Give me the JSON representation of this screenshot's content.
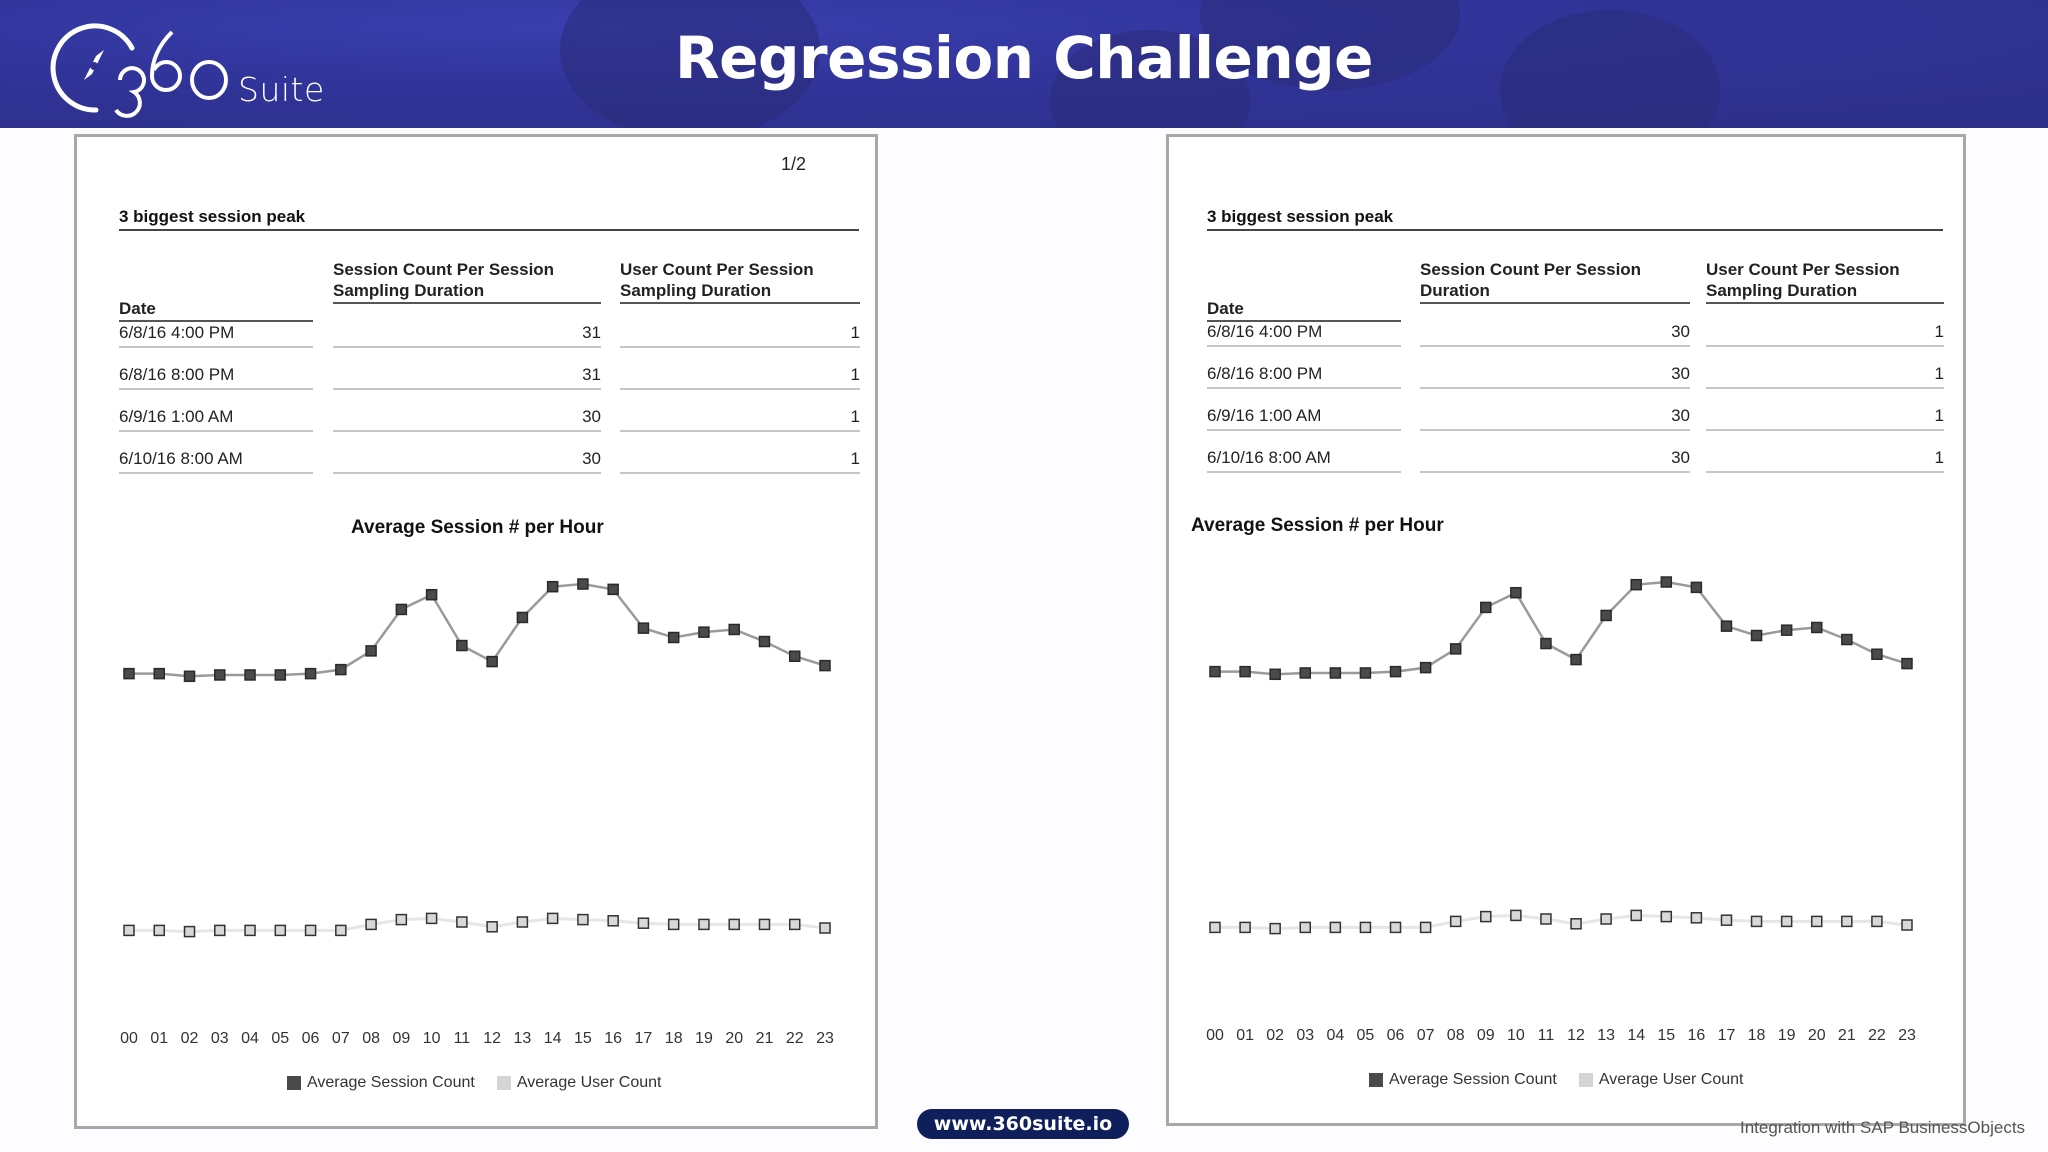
{
  "header": {
    "logo_number": "360",
    "logo_suffix": "Suite",
    "title": "Regression Challenge",
    "background_color": "#3236a0"
  },
  "pages": [
    {
      "page_number": "1/2",
      "section_title": "3 biggest session peak",
      "table": {
        "columns": [
          "Date",
          "Session Count Per Session\nSampling Duration",
          "User Count Per Session\nSampling Duration"
        ],
        "column_lines": [
          [
            "Date"
          ],
          [
            "Session Count Per Session",
            "Sampling Duration"
          ],
          [
            "User Count Per Session",
            "Sampling Duration"
          ]
        ],
        "rows": [
          {
            "date": "6/8/16 4:00 PM",
            "session": "31",
            "user": "1"
          },
          {
            "date": "6/8/16 8:00 PM",
            "session": "31",
            "user": "1"
          },
          {
            "date": "6/9/16 1:00 AM",
            "session": "30",
            "user": "1"
          },
          {
            "date": "6/10/16 8:00 AM",
            "session": "30",
            "user": "1"
          }
        ]
      },
      "chart_title": "Average Session # per Hour",
      "legend": [
        "Average Session Count",
        "Average User Count"
      ]
    },
    {
      "page_number": "",
      "section_title": "3 biggest session peak",
      "table": {
        "columns": [
          "Date",
          "Session Count Per Session\nDuration",
          "User Count Per Session\nSampling Duration"
        ],
        "column_lines": [
          [
            "Date"
          ],
          [
            "Session Count Per Session",
            "Duration"
          ],
          [
            "User Count Per Session",
            "Sampling Duration"
          ]
        ],
        "rows": [
          {
            "date": "6/8/16 4:00 PM",
            "session": "30",
            "user": "1"
          },
          {
            "date": "6/8/16 8:00 PM",
            "session": "30",
            "user": "1"
          },
          {
            "date": "6/9/16 1:00 AM",
            "session": "30",
            "user": "1"
          },
          {
            "date": "6/10/16 8:00 AM",
            "session": "30",
            "user": "1"
          }
        ]
      },
      "chart_title": "Average Session # per Hour",
      "legend": [
        "Average Session Count",
        "Average User Count"
      ]
    }
  ],
  "chart_data": [
    {
      "type": "line",
      "title": "Average Session # per Hour",
      "xlabel": "",
      "ylabel": "",
      "categories": [
        "00",
        "01",
        "02",
        "03",
        "04",
        "05",
        "06",
        "07",
        "08",
        "09",
        "10",
        "11",
        "12",
        "13",
        "14",
        "15",
        "16",
        "17",
        "18",
        "19",
        "20",
        "21",
        "22",
        "23"
      ],
      "series": [
        {
          "name": "Average Session Count",
          "color": "#4a4a4a",
          "values": [
            12.0,
            12.0,
            11.8,
            11.9,
            11.9,
            11.9,
            12.0,
            12.3,
            13.7,
            16.8,
            17.9,
            14.1,
            12.9,
            16.2,
            18.5,
            18.7,
            18.3,
            15.4,
            14.7,
            15.1,
            15.3,
            14.4,
            13.3,
            12.6
          ]
        },
        {
          "name": "Average User Count",
          "color": "#cfcfcf",
          "values": [
            0.8,
            0.8,
            0.7,
            0.8,
            0.8,
            0.8,
            0.8,
            0.8,
            1.3,
            1.7,
            1.8,
            1.5,
            1.1,
            1.5,
            1.8,
            1.7,
            1.6,
            1.4,
            1.3,
            1.3,
            1.3,
            1.3,
            1.3,
            1.0
          ]
        }
      ],
      "ylim": [
        0,
        20
      ],
      "grid": false,
      "legend_position": "bottom"
    },
    {
      "type": "line",
      "title": "Average Session # per Hour",
      "xlabel": "",
      "ylabel": "",
      "categories": [
        "00",
        "01",
        "02",
        "03",
        "04",
        "05",
        "06",
        "07",
        "08",
        "09",
        "10",
        "11",
        "12",
        "13",
        "14",
        "15",
        "16",
        "17",
        "18",
        "19",
        "20",
        "21",
        "22",
        "23"
      ],
      "series": [
        {
          "name": "Average Session Count",
          "color": "#4a4a4a",
          "values": [
            12.0,
            12.0,
            11.8,
            11.9,
            11.9,
            11.9,
            12.0,
            12.3,
            13.7,
            16.8,
            17.9,
            14.1,
            12.9,
            16.2,
            18.5,
            18.7,
            18.3,
            15.4,
            14.7,
            15.1,
            15.3,
            14.4,
            13.3,
            12.6
          ]
        },
        {
          "name": "Average User Count",
          "color": "#cfcfcf",
          "values": [
            0.8,
            0.8,
            0.7,
            0.8,
            0.8,
            0.8,
            0.8,
            0.8,
            1.3,
            1.7,
            1.8,
            1.5,
            1.1,
            1.5,
            1.8,
            1.7,
            1.6,
            1.4,
            1.3,
            1.3,
            1.3,
            1.3,
            1.3,
            1.0
          ]
        }
      ],
      "ylim": [
        0,
        20
      ],
      "grid": false,
      "legend_position": "bottom"
    }
  ],
  "footer": {
    "website": "www.360suite.io",
    "note": "Integration with SAP BusinessObjects"
  }
}
